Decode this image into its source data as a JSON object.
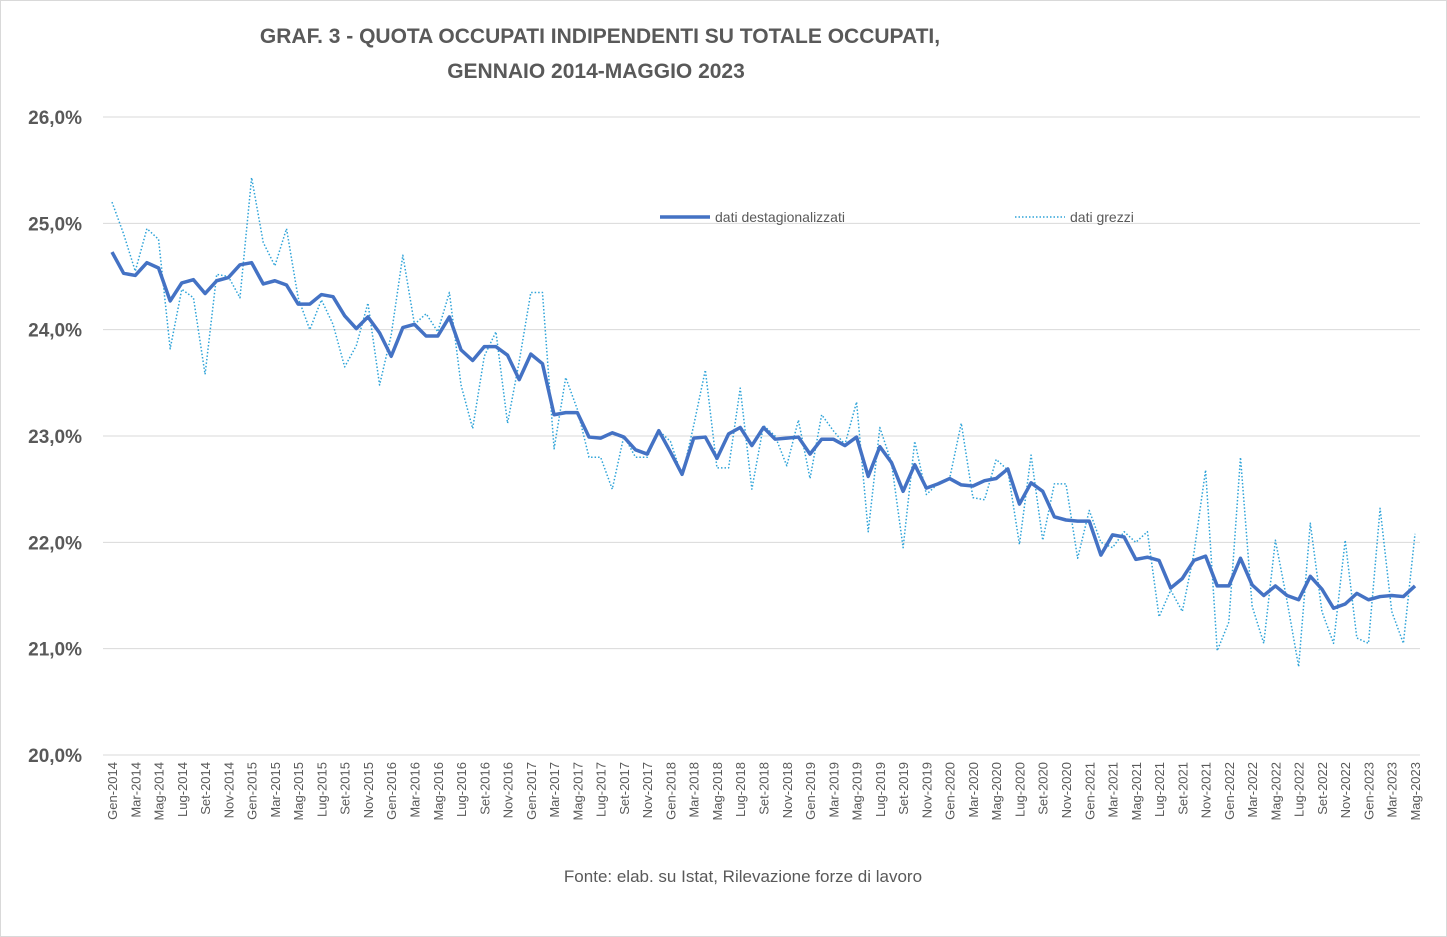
{
  "chart_data": {
    "type": "line",
    "title": [
      "GRAF. 3 - QUOTA OCCUPATI INDIPENDENTI SU TOTALE OCCUPATI,",
      "GENNAIO 2014-MAGGIO 2023"
    ],
    "source": "Fonte: elab. su Istat, Rilevazione forze di lavoro",
    "ylim": [
      20,
      26
    ],
    "yticks": [
      {
        "value": 20,
        "label": "20,0%"
      },
      {
        "value": 21,
        "label": "21,0%"
      },
      {
        "value": 22,
        "label": "22,0%"
      },
      {
        "value": 23,
        "label": "23,0%"
      },
      {
        "value": 24,
        "label": "24,0%"
      },
      {
        "value": 25,
        "label": "25,0%"
      },
      {
        "value": 26,
        "label": "26,0%"
      }
    ],
    "grid": true,
    "legend": "top",
    "categories": [
      "Gen-2014",
      null,
      "Mar-2014",
      null,
      "Mag-2014",
      null,
      "Lug-2014",
      null,
      "Set-2014",
      null,
      "Nov-2014",
      null,
      "Gen-2015",
      null,
      "Mar-2015",
      null,
      "Mag-2015",
      null,
      "Lug-2015",
      null,
      "Set-2015",
      null,
      "Nov-2015",
      null,
      "Gen-2016",
      null,
      "Mar-2016",
      null,
      "Mag-2016",
      null,
      "Lug-2016",
      null,
      "Set-2016",
      null,
      "Nov-2016",
      null,
      "Gen-2017",
      null,
      "Mar-2017",
      null,
      "Mag-2017",
      null,
      "Lug-2017",
      null,
      "Set-2017",
      null,
      "Nov-2017",
      null,
      "Gen-2018",
      null,
      "Mar-2018",
      null,
      "Mag-2018",
      null,
      "Lug-2018",
      null,
      "Set-2018",
      null,
      "Nov-2018",
      null,
      "Gen-2019",
      null,
      "Mar-2019",
      null,
      "Mag-2019",
      null,
      "Lug-2019",
      null,
      "Set-2019",
      null,
      "Nov-2019",
      null,
      "Gen-2020",
      null,
      "Mar-2020",
      null,
      "Mag-2020",
      null,
      "Lug-2020",
      null,
      "Set-2020",
      null,
      "Nov-2020",
      null,
      "Gen-2021",
      null,
      "Mar-2021",
      null,
      "Mag-2021",
      null,
      "Lug-2021",
      null,
      "Set-2021",
      null,
      "Nov-2021",
      null,
      "Gen-2022",
      null,
      "Mar-2022",
      null,
      "Mag-2022",
      null,
      "Lug-2022",
      null,
      "Set-2022",
      null,
      "Nov-2022",
      null,
      "Gen-2023",
      null,
      "Mar-2023",
      null,
      "Mag-2023"
    ],
    "series": [
      {
        "name": "dati destagionalizzati",
        "color": "#4472c4",
        "style": "solid",
        "values": [
          24.73,
          24.53,
          24.51,
          24.63,
          24.58,
          24.27,
          24.44,
          24.47,
          24.34,
          24.46,
          24.49,
          24.61,
          24.63,
          24.43,
          24.46,
          24.42,
          24.24,
          24.24,
          24.33,
          24.31,
          24.13,
          24.01,
          24.12,
          23.97,
          23.75,
          24.02,
          24.05,
          23.94,
          23.94,
          24.12,
          23.81,
          23.71,
          23.84,
          23.84,
          23.76,
          23.53,
          23.77,
          23.68,
          23.2,
          23.22,
          23.22,
          22.99,
          22.98,
          23.03,
          22.99,
          22.87,
          22.83,
          23.05,
          22.85,
          22.64,
          22.98,
          22.99,
          22.79,
          23.02,
          23.08,
          22.91,
          23.08,
          22.97,
          22.98,
          22.99,
          22.83,
          22.97,
          22.97,
          22.91,
          22.99,
          22.62,
          22.9,
          22.75,
          22.48,
          22.73,
          22.51,
          22.55,
          22.6,
          22.54,
          22.53,
          22.58,
          22.6,
          22.69,
          22.36,
          22.56,
          22.48,
          22.24,
          22.21,
          22.2,
          22.2,
          21.88,
          22.07,
          22.05,
          21.84,
          21.86,
          21.83,
          21.57,
          21.66,
          21.83,
          21.87,
          21.59,
          21.59,
          21.85,
          21.6,
          21.5,
          21.59,
          21.5,
          21.46,
          21.68,
          21.56,
          21.38,
          21.42,
          21.52,
          21.46,
          21.49,
          21.5,
          21.49,
          21.59
        ]
      },
      {
        "name": "dati grezzi",
        "color": "#2ea3d8",
        "style": "dotted",
        "values": [
          25.2,
          24.9,
          24.55,
          24.95,
          24.85,
          23.82,
          24.38,
          24.3,
          23.58,
          24.52,
          24.5,
          24.3,
          25.43,
          24.82,
          24.6,
          24.95,
          24.3,
          24.0,
          24.28,
          24.05,
          23.65,
          23.85,
          24.25,
          23.48,
          23.95,
          24.7,
          24.05,
          24.15,
          23.98,
          24.35,
          23.48,
          23.07,
          23.75,
          23.98,
          23.12,
          23.7,
          24.35,
          24.35,
          22.88,
          23.55,
          23.25,
          22.8,
          22.8,
          22.5,
          23.0,
          22.8,
          22.8,
          23.05,
          22.95,
          22.62,
          23.1,
          23.62,
          22.7,
          22.7,
          23.45,
          22.5,
          23.1,
          23.0,
          22.72,
          23.15,
          22.6,
          23.2,
          23.05,
          22.92,
          23.32,
          22.1,
          23.08,
          22.75,
          21.95,
          22.95,
          22.45,
          22.55,
          22.6,
          23.12,
          22.42,
          22.4,
          22.78,
          22.68,
          21.98,
          22.82,
          22.02,
          22.55,
          22.55,
          21.85,
          22.3,
          22.0,
          21.95,
          22.1,
          22.0,
          22.1,
          21.3,
          21.55,
          21.35,
          21.9,
          22.68,
          20.98,
          21.25,
          22.8,
          21.4,
          21.05,
          22.02,
          21.45,
          20.83,
          22.18,
          21.35,
          21.05,
          22.02,
          21.1,
          21.05,
          22.32,
          21.35,
          21.05,
          22.08
        ]
      }
    ]
  }
}
